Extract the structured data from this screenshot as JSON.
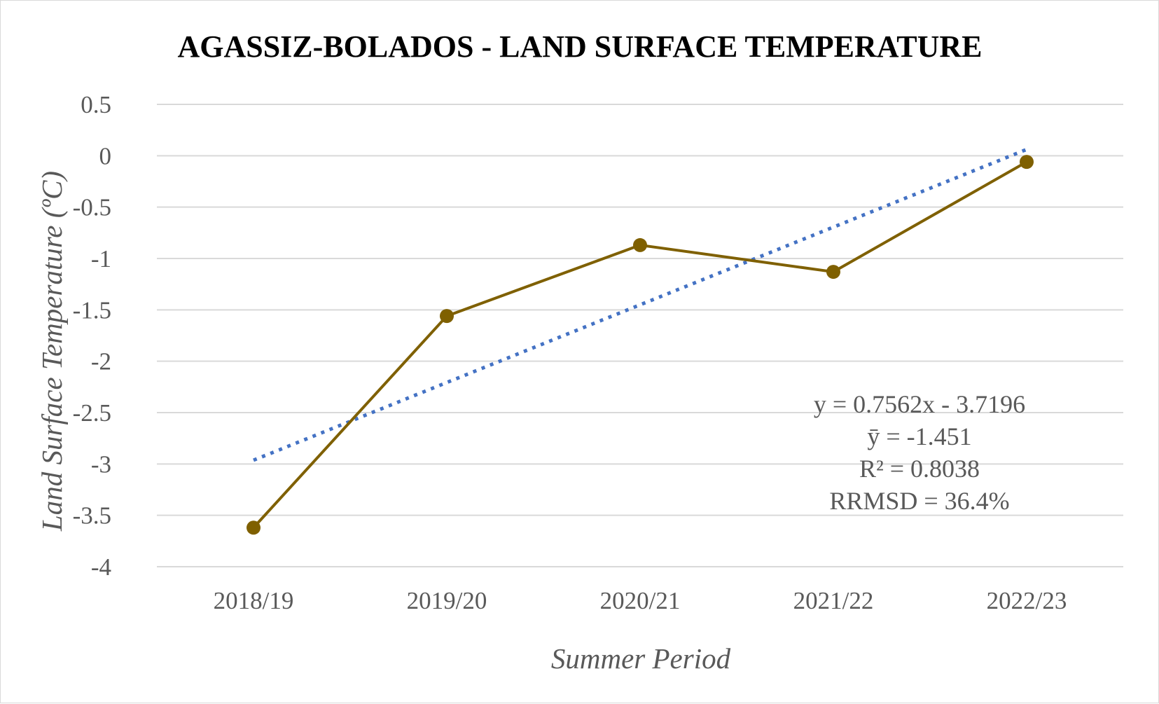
{
  "chart_data": {
    "type": "line",
    "title": "AGASSIZ-BOLADOS - LAND SURFACE TEMPERATURE",
    "xlabel": "Summer Period",
    "ylabel": "Land Surface Temperature (ºC)",
    "categories": [
      "2018/19",
      "2019/20",
      "2020/21",
      "2021/22",
      "2022/23"
    ],
    "series": [
      {
        "values": [
          -3.62,
          -1.56,
          -0.87,
          -1.13,
          -0.06
        ],
        "color": "#7f6000"
      }
    ],
    "trendline": {
      "type": "linear",
      "slope": 0.7562,
      "intercept": -3.7196,
      "color": "#4472c4",
      "style": "dotted"
    },
    "annotations": [
      "y = 0.7562x - 3.7196",
      "ȳ = -1.451",
      "R² = 0.8038",
      "RRMSD = 36.4%"
    ],
    "ylim": [
      -4,
      0.5
    ],
    "yticks": [
      "0.5",
      "0",
      "-0.5",
      "-1",
      "-1.5",
      "-2",
      "-2.5",
      "-3",
      "-3.5",
      "-4"
    ],
    "grid": true,
    "legend": "none"
  }
}
